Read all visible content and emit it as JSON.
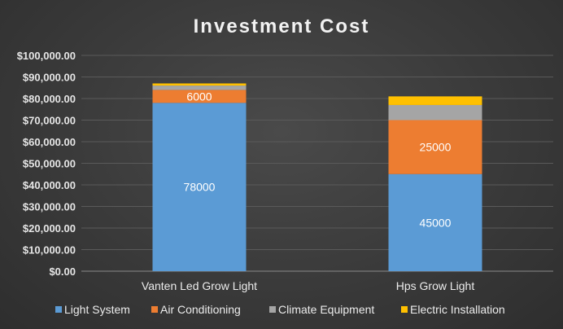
{
  "chart_data": {
    "type": "stacked-bar",
    "title": "Investment Cost",
    "categories": [
      "Vanten Led Grow Light",
      "Hps Grow Light"
    ],
    "series": [
      {
        "name": "Light System",
        "values": [
          78000,
          45000
        ],
        "color": "#5b9bd5",
        "labels": [
          "78000",
          "45000"
        ]
      },
      {
        "name": "Air Conditioning",
        "values": [
          6000,
          25000
        ],
        "color": "#ed7d31",
        "labels": [
          "6000",
          "25000"
        ]
      },
      {
        "name": "Climate Equipment",
        "values": [
          2000,
          7000
        ],
        "color": "#a5a5a5",
        "labels": [
          "",
          ""
        ]
      },
      {
        "name": "Electric Installation",
        "values": [
          1000,
          4000
        ],
        "color": "#ffc000",
        "labels": [
          "",
          ""
        ]
      }
    ],
    "ylim": [
      0,
      100000
    ],
    "yticks": [
      "$0.00",
      "$10,000.00",
      "$20,000.00",
      "$30,000.00",
      "$40,000.00",
      "$50,000.00",
      "$60,000.00",
      "$70,000.00",
      "$80,000.00",
      "$90,000.00",
      "$100,000.00"
    ],
    "ytick_values": [
      0,
      10000,
      20000,
      30000,
      40000,
      50000,
      60000,
      70000,
      80000,
      90000,
      100000
    ],
    "grid": true,
    "legend_position": "bottom"
  }
}
